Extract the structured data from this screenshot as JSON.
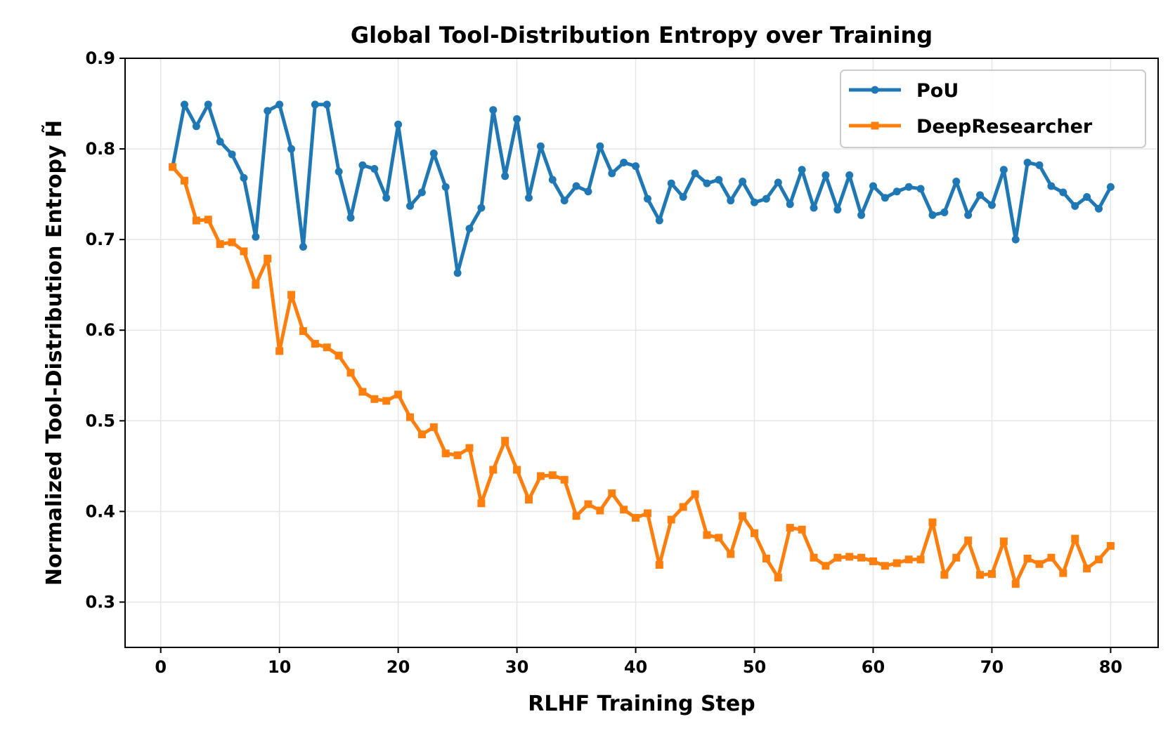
{
  "chart_data": {
    "type": "line",
    "title": "Global Tool-Distribution Entropy over Training",
    "xlabel": "RLHF Training Step",
    "ylabel": "Normalized Tool-Distribution Entropy H̃",
    "xlim": [
      -3,
      84
    ],
    "ylim": [
      0.25,
      0.9
    ],
    "xticks": [
      0,
      10,
      20,
      30,
      40,
      50,
      60,
      70,
      80
    ],
    "xtick_labels": [
      "0",
      "10",
      "20",
      "30",
      "40",
      "50",
      "60",
      "70",
      "80"
    ],
    "yticks": [
      0.3,
      0.4,
      0.5,
      0.6,
      0.7,
      0.8,
      0.9
    ],
    "ytick_labels": [
      "0.3",
      "0.4",
      "0.5",
      "0.6",
      "0.7",
      "0.8",
      "0.9"
    ],
    "grid": true,
    "legend_position": "top-right",
    "x": [
      1,
      2,
      3,
      4,
      5,
      6,
      7,
      8,
      9,
      10,
      11,
      12,
      13,
      14,
      15,
      16,
      17,
      18,
      19,
      20,
      21,
      22,
      23,
      24,
      25,
      26,
      27,
      28,
      29,
      30,
      31,
      32,
      33,
      34,
      35,
      36,
      37,
      38,
      39,
      40,
      41,
      42,
      43,
      44,
      45,
      46,
      47,
      48,
      49,
      50,
      51,
      52,
      53,
      54,
      55,
      56,
      57,
      58,
      59,
      60,
      61,
      62,
      63,
      64,
      65,
      66,
      67,
      68,
      69,
      70,
      71,
      72,
      73,
      74,
      75,
      76,
      77,
      78,
      79,
      80
    ],
    "series": [
      {
        "name": "PoU",
        "color": "#1f77b4",
        "marker": "circle",
        "values": [
          0.78,
          0.849,
          0.825,
          0.849,
          0.808,
          0.794,
          0.768,
          0.703,
          0.842,
          0.849,
          0.8,
          0.692,
          0.849,
          0.849,
          0.775,
          0.724,
          0.782,
          0.778,
          0.746,
          0.827,
          0.737,
          0.752,
          0.795,
          0.758,
          0.663,
          0.712,
          0.735,
          0.843,
          0.77,
          0.833,
          0.746,
          0.803,
          0.766,
          0.743,
          0.759,
          0.753,
          0.803,
          0.773,
          0.785,
          0.781,
          0.745,
          0.721,
          0.762,
          0.747,
          0.773,
          0.762,
          0.766,
          0.743,
          0.764,
          0.741,
          0.745,
          0.763,
          0.739,
          0.777,
          0.735,
          0.771,
          0.733,
          0.771,
          0.727,
          0.759,
          0.746,
          0.753,
          0.758,
          0.756,
          0.727,
          0.73,
          0.764,
          0.727,
          0.749,
          0.738,
          0.777,
          0.7,
          0.785,
          0.782,
          0.759,
          0.752,
          0.737,
          0.747,
          0.734,
          0.758
        ]
      },
      {
        "name": "DeepResearcher",
        "color": "#ff7f0e",
        "marker": "square",
        "values": [
          0.78,
          0.765,
          0.721,
          0.722,
          0.695,
          0.697,
          0.687,
          0.65,
          0.679,
          0.577,
          0.639,
          0.599,
          0.585,
          0.581,
          0.572,
          0.553,
          0.532,
          0.524,
          0.522,
          0.529,
          0.504,
          0.485,
          0.493,
          0.464,
          0.462,
          0.47,
          0.409,
          0.446,
          0.478,
          0.446,
          0.413,
          0.439,
          0.44,
          0.435,
          0.395,
          0.408,
          0.401,
          0.42,
          0.402,
          0.393,
          0.398,
          0.341,
          0.391,
          0.405,
          0.419,
          0.374,
          0.371,
          0.353,
          0.395,
          0.376,
          0.348,
          0.327,
          0.382,
          0.38,
          0.349,
          0.34,
          0.349,
          0.35,
          0.349,
          0.345,
          0.34,
          0.343,
          0.347,
          0.347,
          0.388,
          0.33,
          0.349,
          0.368,
          0.33,
          0.331,
          0.367,
          0.32,
          0.348,
          0.342,
          0.349,
          0.332,
          0.37,
          0.337,
          0.347,
          0.362
        ]
      }
    ]
  }
}
